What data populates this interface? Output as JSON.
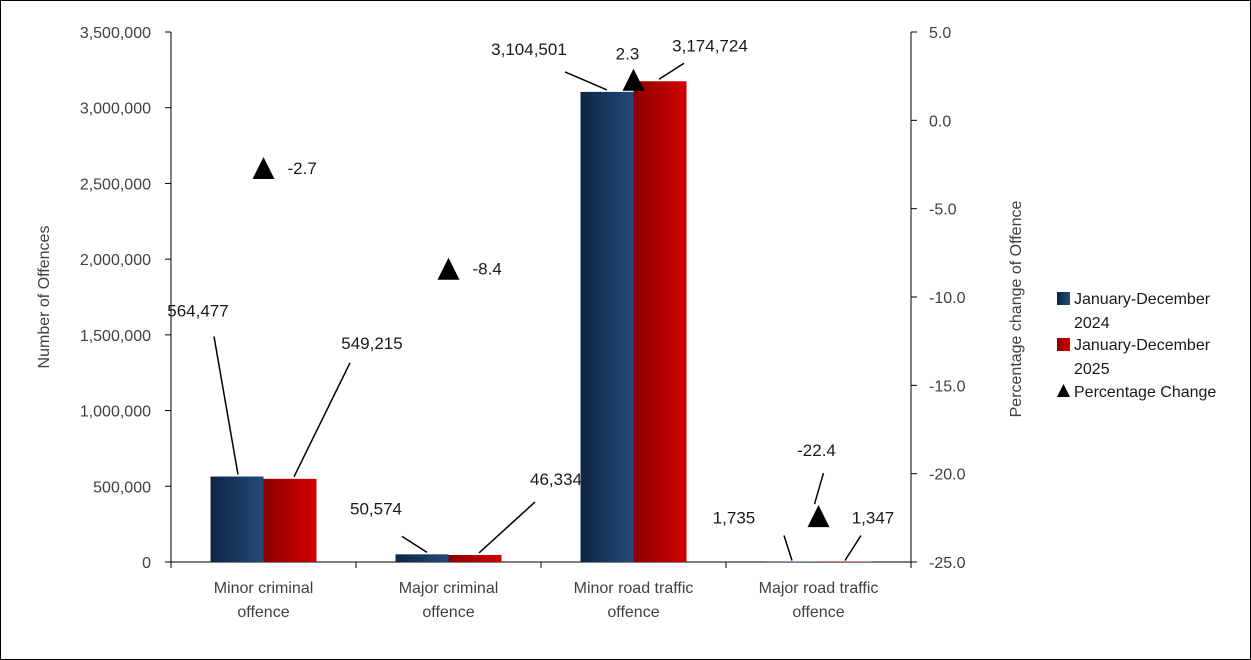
{
  "chart_data": {
    "type": "bar",
    "categories": [
      [
        "Minor criminal",
        "offence"
      ],
      [
        "Major criminal",
        "offence"
      ],
      [
        "Minor road traffic",
        "offence"
      ],
      [
        "Major road traffic",
        "offence"
      ]
    ],
    "series": [
      {
        "name": "January-December 2024",
        "legend_lines": [
          "January-December",
          "2024"
        ],
        "values": [
          564477,
          50574,
          3104501,
          1735
        ],
        "labels": [
          "564,477",
          "50,574",
          "3,104,501",
          "1,735"
        ],
        "color": "#1f3f66"
      },
      {
        "name": "January-December 2025",
        "legend_lines": [
          "January-December",
          "2025"
        ],
        "values": [
          549215,
          46334,
          3174724,
          1347
        ],
        "labels": [
          "549,215",
          "46,334",
          "3,174,724",
          "1,347"
        ],
        "color": "#c00000"
      }
    ],
    "secondary_series": {
      "name": "Percentage Change",
      "type": "scatter",
      "marker": "triangle",
      "values": [
        -2.7,
        -8.4,
        2.3,
        -22.4
      ],
      "labels": [
        "-2.7",
        "-8.4",
        "2.3",
        "-22.4"
      ],
      "color": "#000000"
    },
    "ylabel": "Number of Offences",
    "y2label": "Percentage change of Offence",
    "ylim": [
      0,
      3500000
    ],
    "y2lim": [
      -25,
      5
    ],
    "yticks": [
      "0",
      "500,000",
      "1,000,000",
      "1,500,000",
      "2,000,000",
      "2,500,000",
      "3,000,000",
      "3,500,000"
    ],
    "y2ticks": [
      "-25.0",
      "-20.0",
      "-15.0",
      "-10.0",
      "-5.0",
      "0.0",
      "5.0"
    ],
    "grid": false,
    "legend_position": "right"
  }
}
